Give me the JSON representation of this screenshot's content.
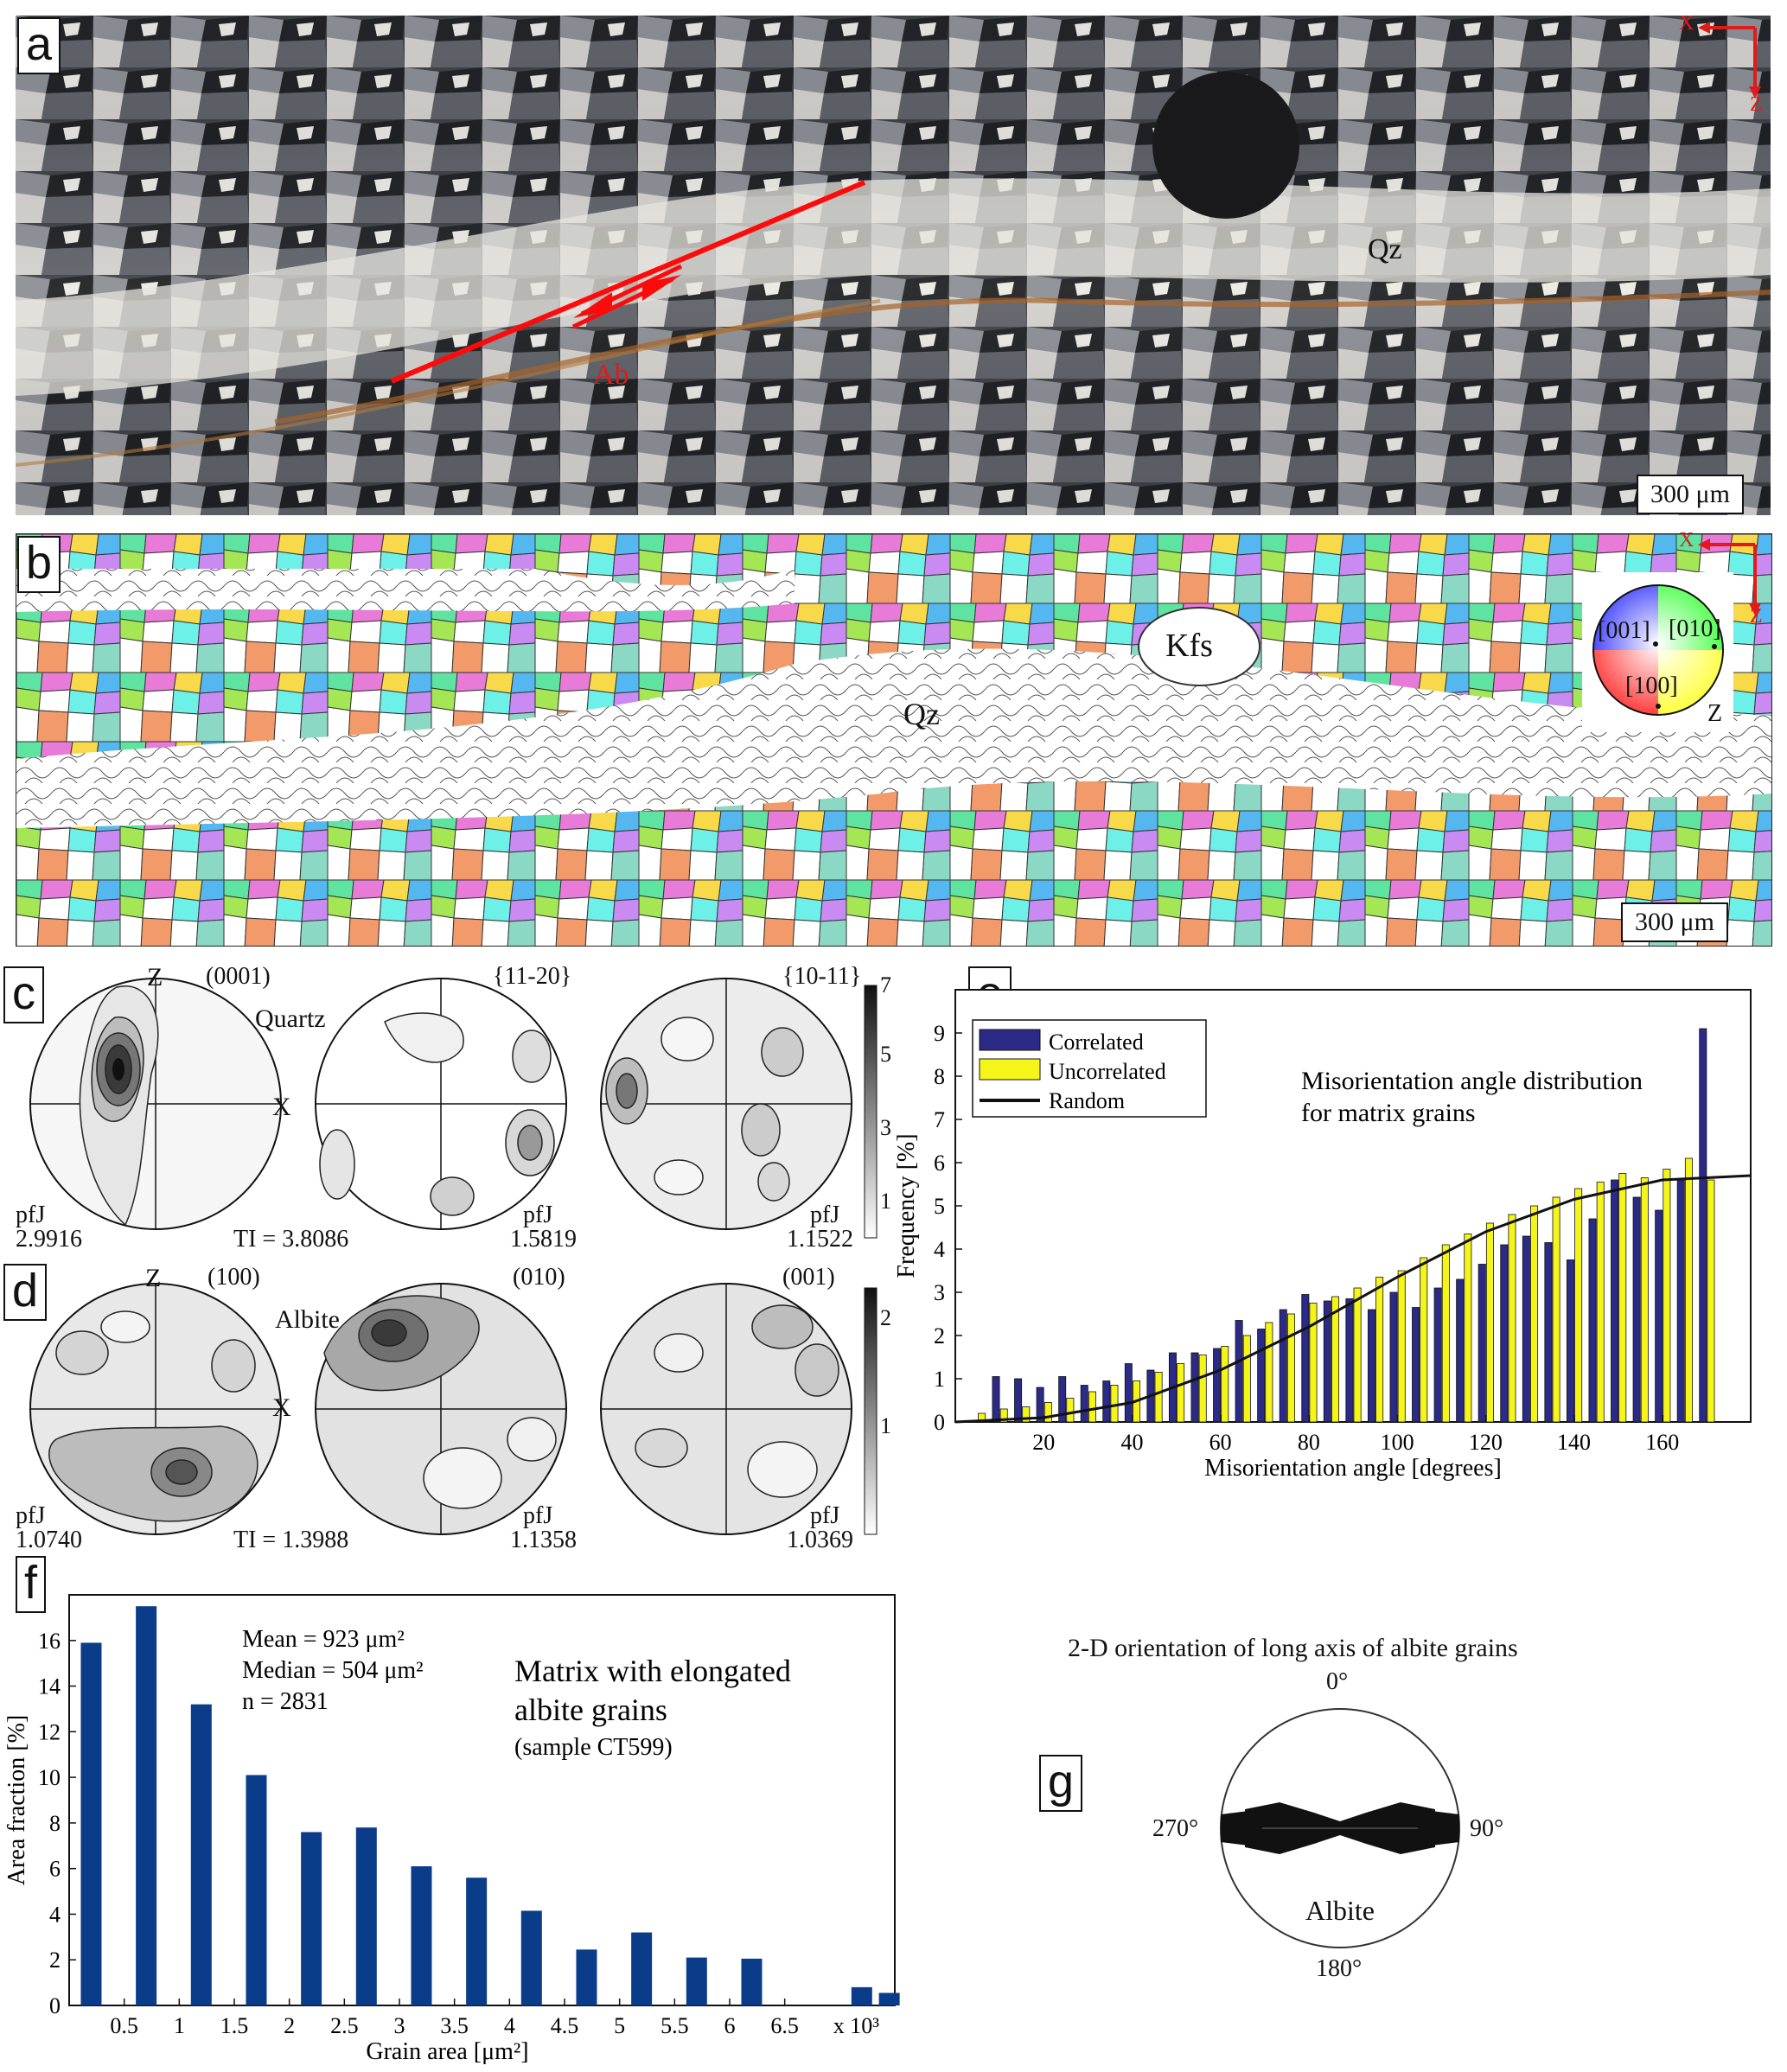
{
  "panel_a": {
    "letter": "a",
    "labels": {
      "qz": "Qz",
      "ab": "Ab"
    },
    "axes": {
      "x": "X",
      "z": "Z"
    },
    "scale": "300 μm"
  },
  "panel_b": {
    "letter": "b",
    "labels": {
      "kfs": "Kfs",
      "qz": "Qz"
    },
    "axes": {
      "x": "X",
      "z": "Z"
    },
    "ipf": {
      "a": "[001]",
      "b": "[010]",
      "c": "[100]",
      "z": "Z"
    },
    "scale": "300 μm"
  },
  "panel_c": {
    "letter": "c",
    "mineral": "Quartz",
    "planes": [
      "(0001)",
      "{11-20}",
      "{10-11}"
    ],
    "z": "Z",
    "x": "X",
    "pfj_label": "pfJ",
    "pfj": [
      "2.9916",
      "1.5819",
      "1.1522"
    ],
    "ti": "TI = 3.8086",
    "scale_ticks": [
      "7",
      "5",
      "3",
      "1"
    ]
  },
  "panel_d": {
    "letter": "d",
    "mineral": "Albite",
    "planes": [
      "(100)",
      "(010)",
      "(001)"
    ],
    "z": "Z",
    "x": "X",
    "pfj_label": "pfJ",
    "pfj": [
      "1.0740",
      "1.1358",
      "1.0369"
    ],
    "ti": "TI = 1.3988",
    "scale_ticks": [
      "2",
      "1"
    ]
  },
  "panel_e": {
    "letter": "e",
    "title_line1": "Misorientation angle distribution",
    "title_line2": "for matrix grains",
    "colors": {
      "correlated": "#2b2a86",
      "uncorrelated": "#f5f51a"
    }
  },
  "panel_f": {
    "letter": "f",
    "stats": {
      "mean": "Mean = 923 μm²",
      "median": "Median = 504 μm²",
      "n": "n = 2831"
    },
    "caption_line1": "Matrix with elongated",
    "caption_line2": "albite grains",
    "caption_line3": "(sample CT599)",
    "multiplier": "x 10³",
    "bar_color": "#0a3c8a"
  },
  "panel_g": {
    "letter": "g",
    "title": "2-D orientation of long axis of albite grains",
    "angles": {
      "top": "0°",
      "right": "90°",
      "bottom": "180°",
      "left": "270°"
    },
    "label": "Albite"
  },
  "chart_data": [
    {
      "type": "bar",
      "id": "misorientation",
      "xlabel": "Misorientation angle [degrees]",
      "ylabel": "Frequency [%]",
      "xlim": [
        0,
        180
      ],
      "ylim": [
        0,
        10
      ],
      "xticks": [
        20,
        40,
        60,
        80,
        100,
        120,
        140,
        160
      ],
      "yticks": [
        0,
        1,
        2,
        3,
        4,
        5,
        6,
        7,
        8,
        9
      ],
      "x": [
        5,
        10,
        15,
        20,
        25,
        30,
        35,
        40,
        45,
        50,
        55,
        60,
        65,
        70,
        75,
        80,
        85,
        90,
        95,
        100,
        105,
        110,
        115,
        120,
        125,
        130,
        135,
        140,
        145,
        150,
        155,
        160,
        165,
        170,
        175
      ],
      "series": [
        {
          "name": "Correlated",
          "values": [
            0.0,
            1.05,
            1.0,
            0.8,
            1.05,
            0.85,
            0.95,
            1.35,
            1.2,
            1.6,
            1.6,
            1.7,
            2.35,
            2.15,
            2.6,
            2.95,
            2.8,
            2.85,
            2.6,
            3.0,
            2.65,
            3.1,
            3.3,
            3.65,
            4.1,
            4.3,
            4.15,
            3.75,
            4.7,
            5.6,
            5.2,
            4.9,
            5.6,
            9.1,
            0.0
          ]
        },
        {
          "name": "Uncorrelated",
          "values": [
            0.2,
            0.3,
            0.35,
            0.45,
            0.55,
            0.7,
            0.85,
            0.95,
            1.15,
            1.35,
            1.55,
            1.75,
            2.0,
            2.3,
            2.5,
            2.75,
            2.9,
            3.1,
            3.35,
            3.5,
            3.8,
            4.1,
            4.35,
            4.6,
            4.8,
            5.0,
            5.2,
            5.4,
            5.55,
            5.75,
            5.65,
            5.85,
            6.1,
            5.6,
            0.0
          ]
        },
        {
          "name": "Random",
          "type": "line",
          "x": [
            0,
            20,
            40,
            60,
            80,
            100,
            120,
            140,
            160,
            180
          ],
          "values": [
            0.0,
            0.1,
            0.45,
            1.2,
            2.2,
            3.35,
            4.4,
            5.15,
            5.6,
            5.7
          ]
        }
      ],
      "legend": "top-left"
    },
    {
      "type": "bar",
      "id": "grain-area",
      "xlabel": "Grain area [μm²]",
      "ylabel": "Area fraction [%]",
      "xlim": [
        0,
        7.5
      ],
      "ylim": [
        0,
        18
      ],
      "xticks": [
        "0.5",
        "1",
        "1.5",
        "2",
        "2.5",
        "3",
        "3.5",
        "4",
        "4.5",
        "5",
        "5.5",
        "6",
        "6.5"
      ],
      "yticks": [
        0,
        2,
        4,
        6,
        8,
        10,
        12,
        14,
        16
      ],
      "x": [
        0.2,
        0.7,
        1.2,
        1.7,
        2.2,
        2.7,
        3.2,
        3.7,
        4.2,
        4.7,
        5.2,
        5.7,
        6.2,
        7.2,
        7.45
      ],
      "values": [
        15.9,
        17.5,
        13.2,
        10.1,
        7.6,
        7.8,
        6.1,
        5.6,
        4.15,
        2.45,
        3.2,
        2.1,
        2.05,
        0.8,
        0.55
      ]
    }
  ]
}
